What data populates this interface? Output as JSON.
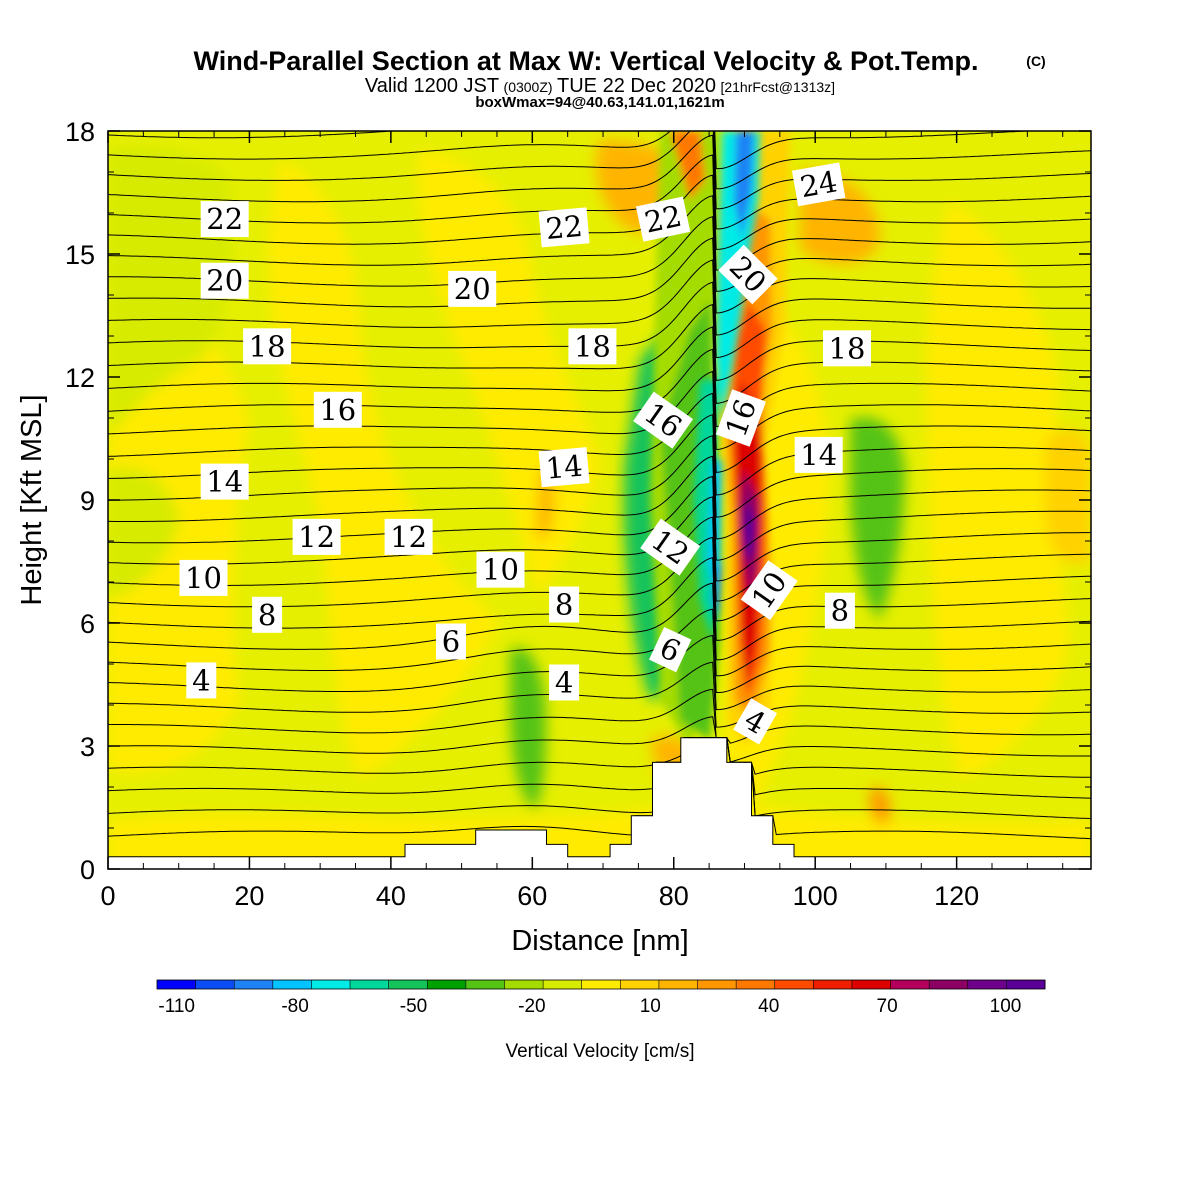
{
  "chart_data": {
    "type": "heatmap",
    "title": "Wind-Parallel Section at Max W: Vertical Velocity & Pot.Temp.",
    "title_mark": "(C)",
    "subtitle_parts": [
      "Valid 1200 JST",
      "(0300Z)",
      "TUE 22 Dec 2020",
      "[21hrFcst@1313z]"
    ],
    "subtitle2": "boxWmax=94@40.63,141.01,1621m",
    "xlabel": "Distance [nm]",
    "ylabel": "Height [Kft MSL]",
    "xlim": [
      0,
      139
    ],
    "ylim": [
      0,
      18
    ],
    "x_ticks": [
      0,
      20,
      40,
      60,
      80,
      100,
      120
    ],
    "y_ticks": [
      0,
      3,
      6,
      9,
      12,
      15,
      18
    ],
    "grid": false,
    "colorbar": {
      "label": "Vertical Velocity [cm/s]",
      "tick_labels": [
        "-110",
        "-80",
        "-50",
        "-20",
        "10",
        "40",
        "70",
        "100"
      ],
      "tick_values": [
        -110,
        -80,
        -50,
        -20,
        10,
        40,
        70,
        100
      ],
      "min": -115,
      "max": 110,
      "step": 10,
      "colors": [
        "#0000ff",
        "#0a4cf5",
        "#1e82f5",
        "#00c3ff",
        "#00ebe6",
        "#00d79b",
        "#14c35a",
        "#00a000",
        "#55c314",
        "#a5dc00",
        "#d7eb00",
        "#ffeb00",
        "#ffd200",
        "#ffb400",
        "#ff9600",
        "#ff7800",
        "#ff4b00",
        "#f01e00",
        "#dc0000",
        "#b4005a",
        "#8c0064",
        "#6e008c",
        "#5a0096"
      ]
    },
    "terrain_kft": [
      [
        0,
        0.3
      ],
      [
        42,
        0.3
      ],
      [
        42,
        0.6
      ],
      [
        52,
        0.6
      ],
      [
        52,
        0.95
      ],
      [
        62,
        0.95
      ],
      [
        62,
        0.6
      ],
      [
        65,
        0.6
      ],
      [
        65,
        0.3
      ],
      [
        71,
        0.3
      ],
      [
        71,
        0.6
      ],
      [
        74,
        0.6
      ],
      [
        74,
        1.3
      ],
      [
        77,
        1.3
      ],
      [
        77,
        2.6
      ],
      [
        81,
        2.6
      ],
      [
        81,
        3.2
      ],
      [
        87.5,
        3.2
      ],
      [
        87.5,
        2.6
      ],
      [
        91,
        2.6
      ],
      [
        91,
        1.3
      ],
      [
        94,
        1.3
      ],
      [
        94,
        0.6
      ],
      [
        97,
        0.6
      ],
      [
        97,
        0.3
      ],
      [
        139,
        0.3
      ]
    ],
    "contour_labels": [
      {
        "text": "22",
        "x": 16.5,
        "y": 15.85,
        "rot": 0
      },
      {
        "text": "20",
        "x": 16.5,
        "y": 14.35,
        "rot": 0
      },
      {
        "text": "18",
        "x": 22.5,
        "y": 12.75,
        "rot": 0
      },
      {
        "text": "16",
        "x": 32.5,
        "y": 11.2,
        "rot": 0
      },
      {
        "text": "14",
        "x": 16.5,
        "y": 9.45,
        "rot": 0
      },
      {
        "text": "12",
        "x": 29.5,
        "y": 8.1,
        "rot": 0
      },
      {
        "text": "12",
        "x": 42.5,
        "y": 8.1,
        "rot": 0
      },
      {
        "text": "10",
        "x": 13.5,
        "y": 7.1,
        "rot": 0
      },
      {
        "text": "8",
        "x": 22.5,
        "y": 6.2,
        "rot": 0
      },
      {
        "text": "4",
        "x": 13.2,
        "y": 4.6,
        "rot": 0
      },
      {
        "text": "6",
        "x": 48.5,
        "y": 5.55,
        "rot": 0
      },
      {
        "text": "4",
        "x": 64.5,
        "y": 4.55,
        "rot": 0
      },
      {
        "text": "8",
        "x": 64.5,
        "y": 6.45,
        "rot": 0
      },
      {
        "text": "10",
        "x": 55.5,
        "y": 7.3,
        "rot": 0
      },
      {
        "text": "14",
        "x": 64.5,
        "y": 9.8,
        "rot": -5
      },
      {
        "text": "18",
        "x": 68.5,
        "y": 12.75,
        "rot": 0
      },
      {
        "text": "20",
        "x": 51.5,
        "y": 14.15,
        "rot": 0
      },
      {
        "text": "22",
        "x": 64.5,
        "y": 15.65,
        "rot": -5
      },
      {
        "text": "22",
        "x": 78.5,
        "y": 15.85,
        "rot": -12
      },
      {
        "text": "16",
        "x": 78.5,
        "y": 10.95,
        "rot": 35
      },
      {
        "text": "12",
        "x": 79.5,
        "y": 7.85,
        "rot": 35
      },
      {
        "text": "6",
        "x": 79.5,
        "y": 5.35,
        "rot": 25
      },
      {
        "text": "20",
        "x": 90.5,
        "y": 14.5,
        "rot": 45
      },
      {
        "text": "16",
        "x": 89.5,
        "y": 11.0,
        "rot": -70
      },
      {
        "text": "10",
        "x": 93.5,
        "y": 6.8,
        "rot": -55
      },
      {
        "text": "4",
        "x": 91.5,
        "y": 3.6,
        "rot": 30
      },
      {
        "text": "24",
        "x": 100.5,
        "y": 16.7,
        "rot": -10
      },
      {
        "text": "18",
        "x": 104.5,
        "y": 12.7,
        "rot": 0
      },
      {
        "text": "14",
        "x": 100.5,
        "y": 10.1,
        "rot": 0
      },
      {
        "text": "8",
        "x": 103.5,
        "y": 6.3,
        "rot": 0
      }
    ]
  }
}
